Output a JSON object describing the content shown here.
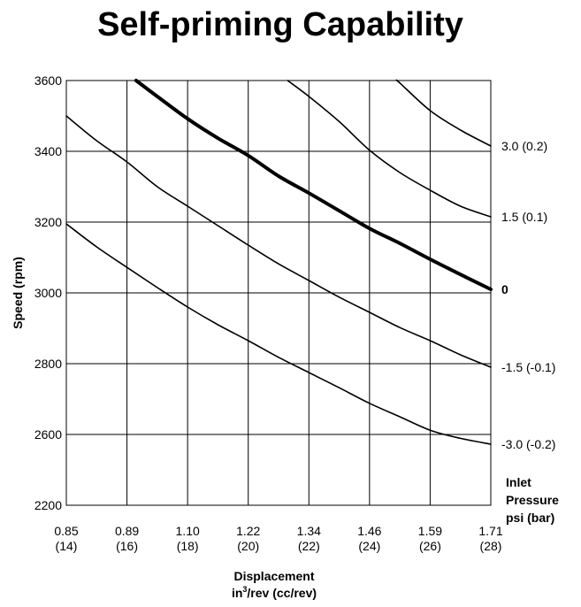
{
  "chart_data": {
    "type": "line",
    "title": "Self-priming Capability",
    "ylabel": "Speed (rpm)",
    "xlabel_line1": "Displacement",
    "xlabel_line2_prefix": "in",
    "xlabel_line2_sup": "3",
    "xlabel_line2_suffix": "/rev (cc/rev)",
    "legend_title": [
      "Inlet",
      "Pressure",
      "psi (bar)"
    ],
    "grid": true,
    "x_categories": [
      {
        "top": "0.85",
        "bottom": "(14)"
      },
      {
        "top": "0.89",
        "bottom": "(16)"
      },
      {
        "top": "1.10",
        "bottom": "(18)"
      },
      {
        "top": "1.22",
        "bottom": "(20)"
      },
      {
        "top": "1.34",
        "bottom": "(22)"
      },
      {
        "top": "1.46",
        "bottom": "(24)"
      },
      {
        "top": "1.59",
        "bottom": "(26)"
      },
      {
        "top": "1.71",
        "bottom": "(28)"
      }
    ],
    "y_ticks": [
      {
        "value": 3600,
        "label": "3600"
      },
      {
        "value": 3400,
        "label": "3400"
      },
      {
        "value": 3200,
        "label": "3200"
      },
      {
        "value": 3000,
        "label": "3000"
      },
      {
        "value": 2800,
        "label": "2800"
      },
      {
        "value": 2600,
        "label": "2600"
      },
      {
        "value": 2200,
        "label": "2200"
      }
    ],
    "series": [
      {
        "name": "3.0 (0.2)",
        "bold_label": false,
        "heavy": false,
        "points": [
          [
            5.45,
            3600
          ],
          [
            5.5,
            3593
          ],
          [
            6,
            3515
          ],
          [
            6.5,
            3460
          ],
          [
            7,
            3415
          ]
        ]
      },
      {
        "name": "1.5 (0.1)",
        "bold_label": false,
        "heavy": false,
        "points": [
          [
            3.65,
            3600
          ],
          [
            4,
            3555
          ],
          [
            4.5,
            3484
          ],
          [
            5,
            3403
          ],
          [
            5.5,
            3340
          ],
          [
            6,
            3290
          ],
          [
            6.5,
            3245
          ],
          [
            7,
            3215
          ]
        ]
      },
      {
        "name": "0",
        "bold_label": true,
        "heavy": true,
        "points": [
          [
            1.15,
            3600
          ],
          [
            1.5,
            3555
          ],
          [
            2,
            3492
          ],
          [
            2.5,
            3437
          ],
          [
            3,
            3388
          ],
          [
            3.5,
            3330
          ],
          [
            4,
            3282
          ],
          [
            4.5,
            3232
          ],
          [
            5,
            3182
          ],
          [
            5.5,
            3140
          ],
          [
            6,
            3095
          ],
          [
            6.5,
            3052
          ],
          [
            7,
            3010
          ]
        ]
      },
      {
        "name": "-1.5 (-0.1)",
        "bold_label": false,
        "heavy": false,
        "points": [
          [
            0,
            3500
          ],
          [
            0.5,
            3430
          ],
          [
            1,
            3370
          ],
          [
            1.5,
            3300
          ],
          [
            2,
            3245
          ],
          [
            2.5,
            3190
          ],
          [
            3,
            3135
          ],
          [
            3.5,
            3082
          ],
          [
            4,
            3035
          ],
          [
            4.5,
            2988
          ],
          [
            5,
            2945
          ],
          [
            5.5,
            2902
          ],
          [
            6,
            2865
          ],
          [
            6.5,
            2825
          ],
          [
            7,
            2790
          ]
        ]
      },
      {
        "name": "-3.0 (-0.2)",
        "bold_label": false,
        "heavy": false,
        "points": [
          [
            0,
            3195
          ],
          [
            0.5,
            3130
          ],
          [
            1,
            3072
          ],
          [
            1.5,
            3015
          ],
          [
            2,
            2960
          ],
          [
            2.5,
            2910
          ],
          [
            3,
            2865
          ],
          [
            3.5,
            2818
          ],
          [
            4,
            2775
          ],
          [
            4.5,
            2732
          ],
          [
            5,
            2688
          ],
          [
            5.5,
            2650
          ],
          [
            6,
            2612
          ],
          [
            6.5,
            2578
          ],
          [
            7,
            2545
          ]
        ]
      }
    ]
  }
}
